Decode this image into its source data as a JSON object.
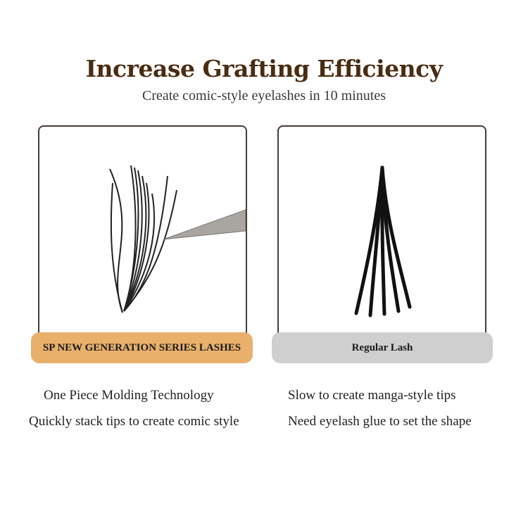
{
  "header": {
    "title": "Increase Grafting Efficiency",
    "subtitle": "Create comic-style eyelashes in 10 minutes"
  },
  "left": {
    "label": "SP NEW GENERATION SERIES LASHES",
    "label_color": "#e9b06c",
    "features": [
      "One Piece Molding Technology",
      "Quickly stack tips to create comic style"
    ]
  },
  "right": {
    "label": "Regular Lash",
    "label_color": "#cfcfcf",
    "features": [
      "Slow to create manga-style tips",
      "Need eyelash glue to set the shape"
    ]
  }
}
